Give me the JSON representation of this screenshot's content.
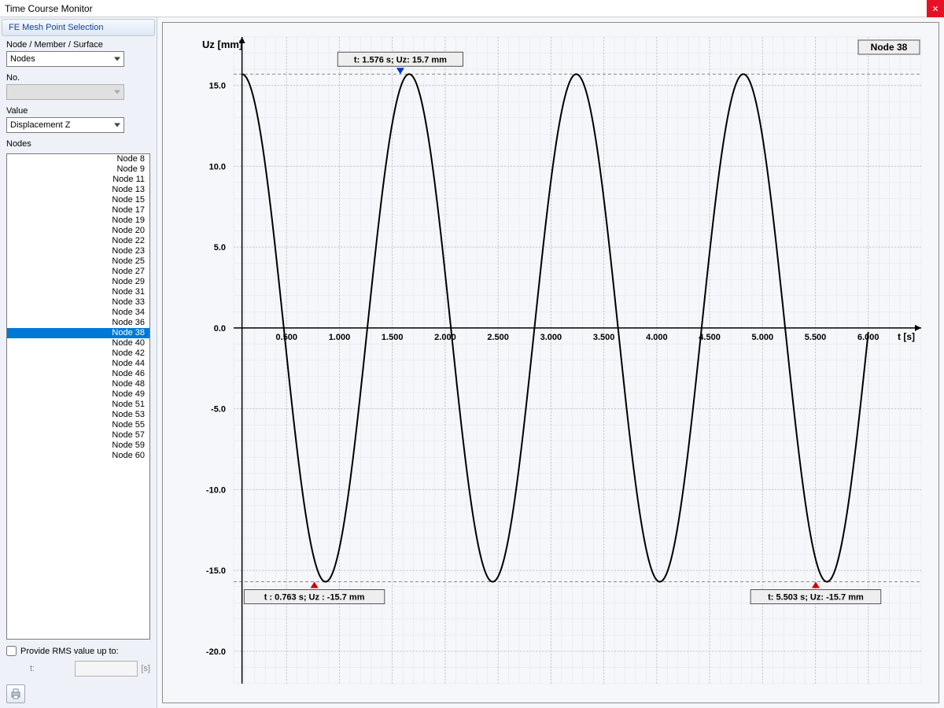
{
  "window": {
    "title": "Time Course Monitor",
    "close_tooltip": "Close"
  },
  "sidebar": {
    "header": "FE Mesh Point Selection",
    "type_label": "Node / Member / Surface",
    "type_value": "Nodes",
    "no_label": "No.",
    "no_value": "",
    "value_label": "Value",
    "value_value": "Displacement Z",
    "nodes_label": "Nodes",
    "nodes": [
      "Node 8",
      "Node 9",
      "Node 11",
      "Node 13",
      "Node 15",
      "Node 17",
      "Node 19",
      "Node 20",
      "Node 22",
      "Node 23",
      "Node 25",
      "Node 27",
      "Node 29",
      "Node 31",
      "Node 33",
      "Node 34",
      "Node 36",
      "Node 38",
      "Node 40",
      "Node 42",
      "Node 44",
      "Node 46",
      "Node 48",
      "Node 49",
      "Node 51",
      "Node 53",
      "Node 55",
      "Node 57",
      "Node 59",
      "Node 60"
    ],
    "selected_node": "Node 38",
    "rms_label": "Provide RMS value up to:",
    "rms_t_label": "t:",
    "rms_unit": "[s]"
  },
  "chart": {
    "type": "line",
    "y_label": "Uz [mm]",
    "x_label": "t [s]",
    "node_badge": "Node 38",
    "xlim": [
      0,
      6.5
    ],
    "ylim": [
      -22,
      18
    ],
    "x_ticks": [
      0.5,
      1.0,
      1.5,
      2.0,
      2.5,
      3.0,
      3.5,
      4.0,
      4.5,
      5.0,
      5.5,
      6.0
    ],
    "x_tick_labels": [
      "0.500",
      "1.000",
      "1.500",
      "2.000",
      "2.500",
      "3.000",
      "3.500",
      "4.000",
      "4.500",
      "5.000",
      "5.500",
      "6.000"
    ],
    "y_ticks": [
      -20,
      -15,
      -10,
      -5,
      0,
      5,
      10,
      15
    ],
    "y_tick_labels": [
      "-20.0",
      "-15.0",
      "-10.0",
      "-5.0",
      "0.0",
      "5.0",
      "10.0",
      "15.0"
    ],
    "minor_y_step": 1,
    "minor_x_step": 0.1,
    "background_color": "#f5f7fa",
    "grid_color": "#c6c8cc",
    "minor_grid_color": "#e2e4e8",
    "axis_color": "#000000",
    "curve_color": "#000000",
    "curve_width": 2,
    "amplitude": 15.7,
    "period": 1.58,
    "phase": 0.079,
    "t_start": 0.079,
    "t_end": 6.0,
    "hline_dash_values": [
      15.7,
      -15.7
    ],
    "annotations": [
      {
        "text": "t: 1.576 s; Uz: 15.7 mm",
        "tx": 1.576,
        "ty": 15.7,
        "box_anchor": "above",
        "marker": "blue_down"
      },
      {
        "text": "t : 0.763 s; Uz : -15.7 mm",
        "tx": 0.763,
        "ty": -15.7,
        "box_anchor": "below",
        "marker": "red_up"
      },
      {
        "text": "t: 5.503 s; Uz: -15.7 mm",
        "tx": 5.503,
        "ty": -15.7,
        "box_anchor": "below",
        "marker": "red_up"
      }
    ],
    "annotation_box_fill": "#eeeeee",
    "annotation_box_stroke": "#555555",
    "marker_blue": "#0033cc",
    "marker_red": "#cc0000"
  }
}
